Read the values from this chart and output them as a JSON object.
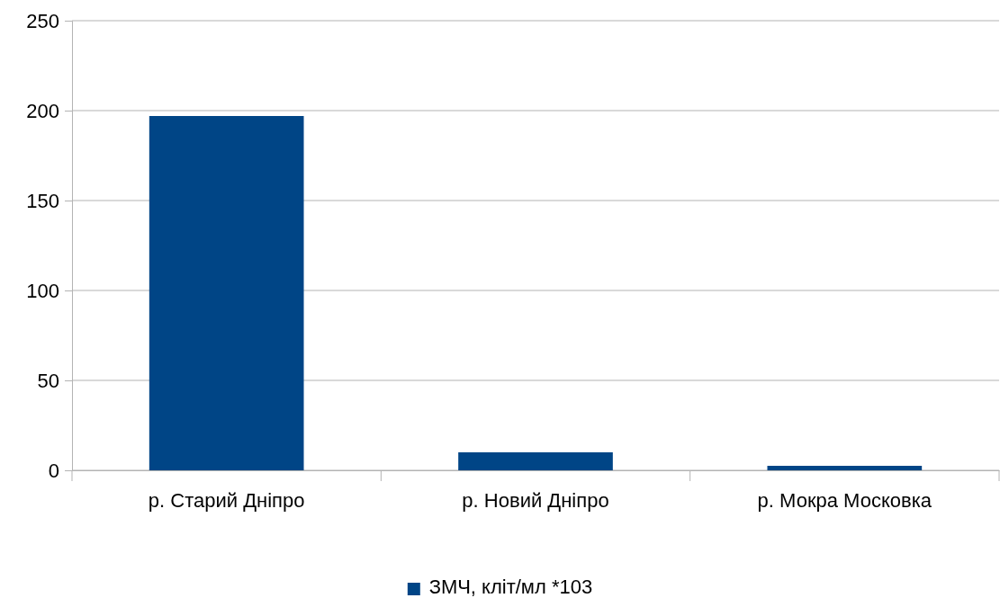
{
  "chart_data": {
    "type": "bar",
    "categories": [
      "р. Старий Дніпро",
      "р. Новий Дніпро",
      "р. Мокра Московка"
    ],
    "series": [
      {
        "name": "ЗМЧ, кліт/мл *103",
        "color": "#004586",
        "values": [
          197,
          10,
          2.5
        ]
      }
    ],
    "ylim": [
      0,
      250
    ],
    "yticks": [
      0,
      50,
      100,
      150,
      200,
      250
    ],
    "grid": "y",
    "legend": "bottom"
  }
}
